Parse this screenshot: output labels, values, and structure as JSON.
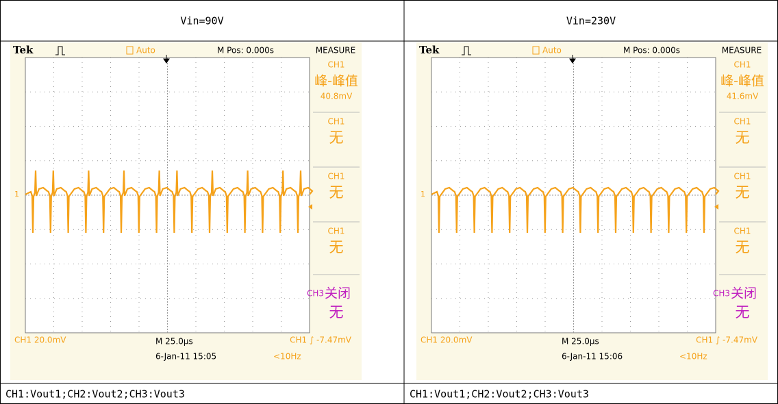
{
  "table": {
    "header": [
      "Vin=90V",
      "Vin=230V"
    ],
    "scopes": [
      {
        "brand": "Tek",
        "trigger_mode": "Auto",
        "position": "M Pos: 0.000s",
        "menu": "MEASURE",
        "measurements": [
          {
            "source": "CH1",
            "type": "峰-峰值",
            "value": "40.8mV"
          },
          {
            "source": "CH1",
            "type": "无"
          },
          {
            "source": "CH1",
            "type": "无"
          },
          {
            "source": "CH1",
            "type": "无"
          },
          {
            "source": "CH3",
            "type": "关闭",
            "value": "无"
          }
        ],
        "channel_marker": "1",
        "scale": "CH1  20.0mV",
        "timebase": "M 25.0µs",
        "trigger": "CH1 ∫ -7.47mV",
        "datetime": "6-Jan-11 15:05",
        "frequency": "<10Hz"
      },
      {
        "brand": "Tek",
        "trigger_mode": "Auto",
        "position": "M Pos: 0.000s",
        "menu": "MEASURE",
        "measurements": [
          {
            "source": "CH1",
            "type": "峰-峰值",
            "value": "41.6mV"
          },
          {
            "source": "CH1",
            "type": "无"
          },
          {
            "source": "CH1",
            "type": "无"
          },
          {
            "source": "CH1",
            "type": "无"
          },
          {
            "source": "CH3",
            "type": "关闭",
            "value": "无"
          }
        ],
        "channel_marker": "1",
        "scale": "CH1  20.0mV",
        "timebase": "M 25.0µs",
        "trigger": "CH1 ∫ -7.47mV",
        "datetime": "6-Jan-11 15:06",
        "frequency": "<10Hz"
      }
    ],
    "footer": [
      "CH1:Vout1;CH2:Vout2;CH3:Vout3",
      "CH1:Vout1;CH2:Vout2;CH3:Vout3"
    ]
  }
}
